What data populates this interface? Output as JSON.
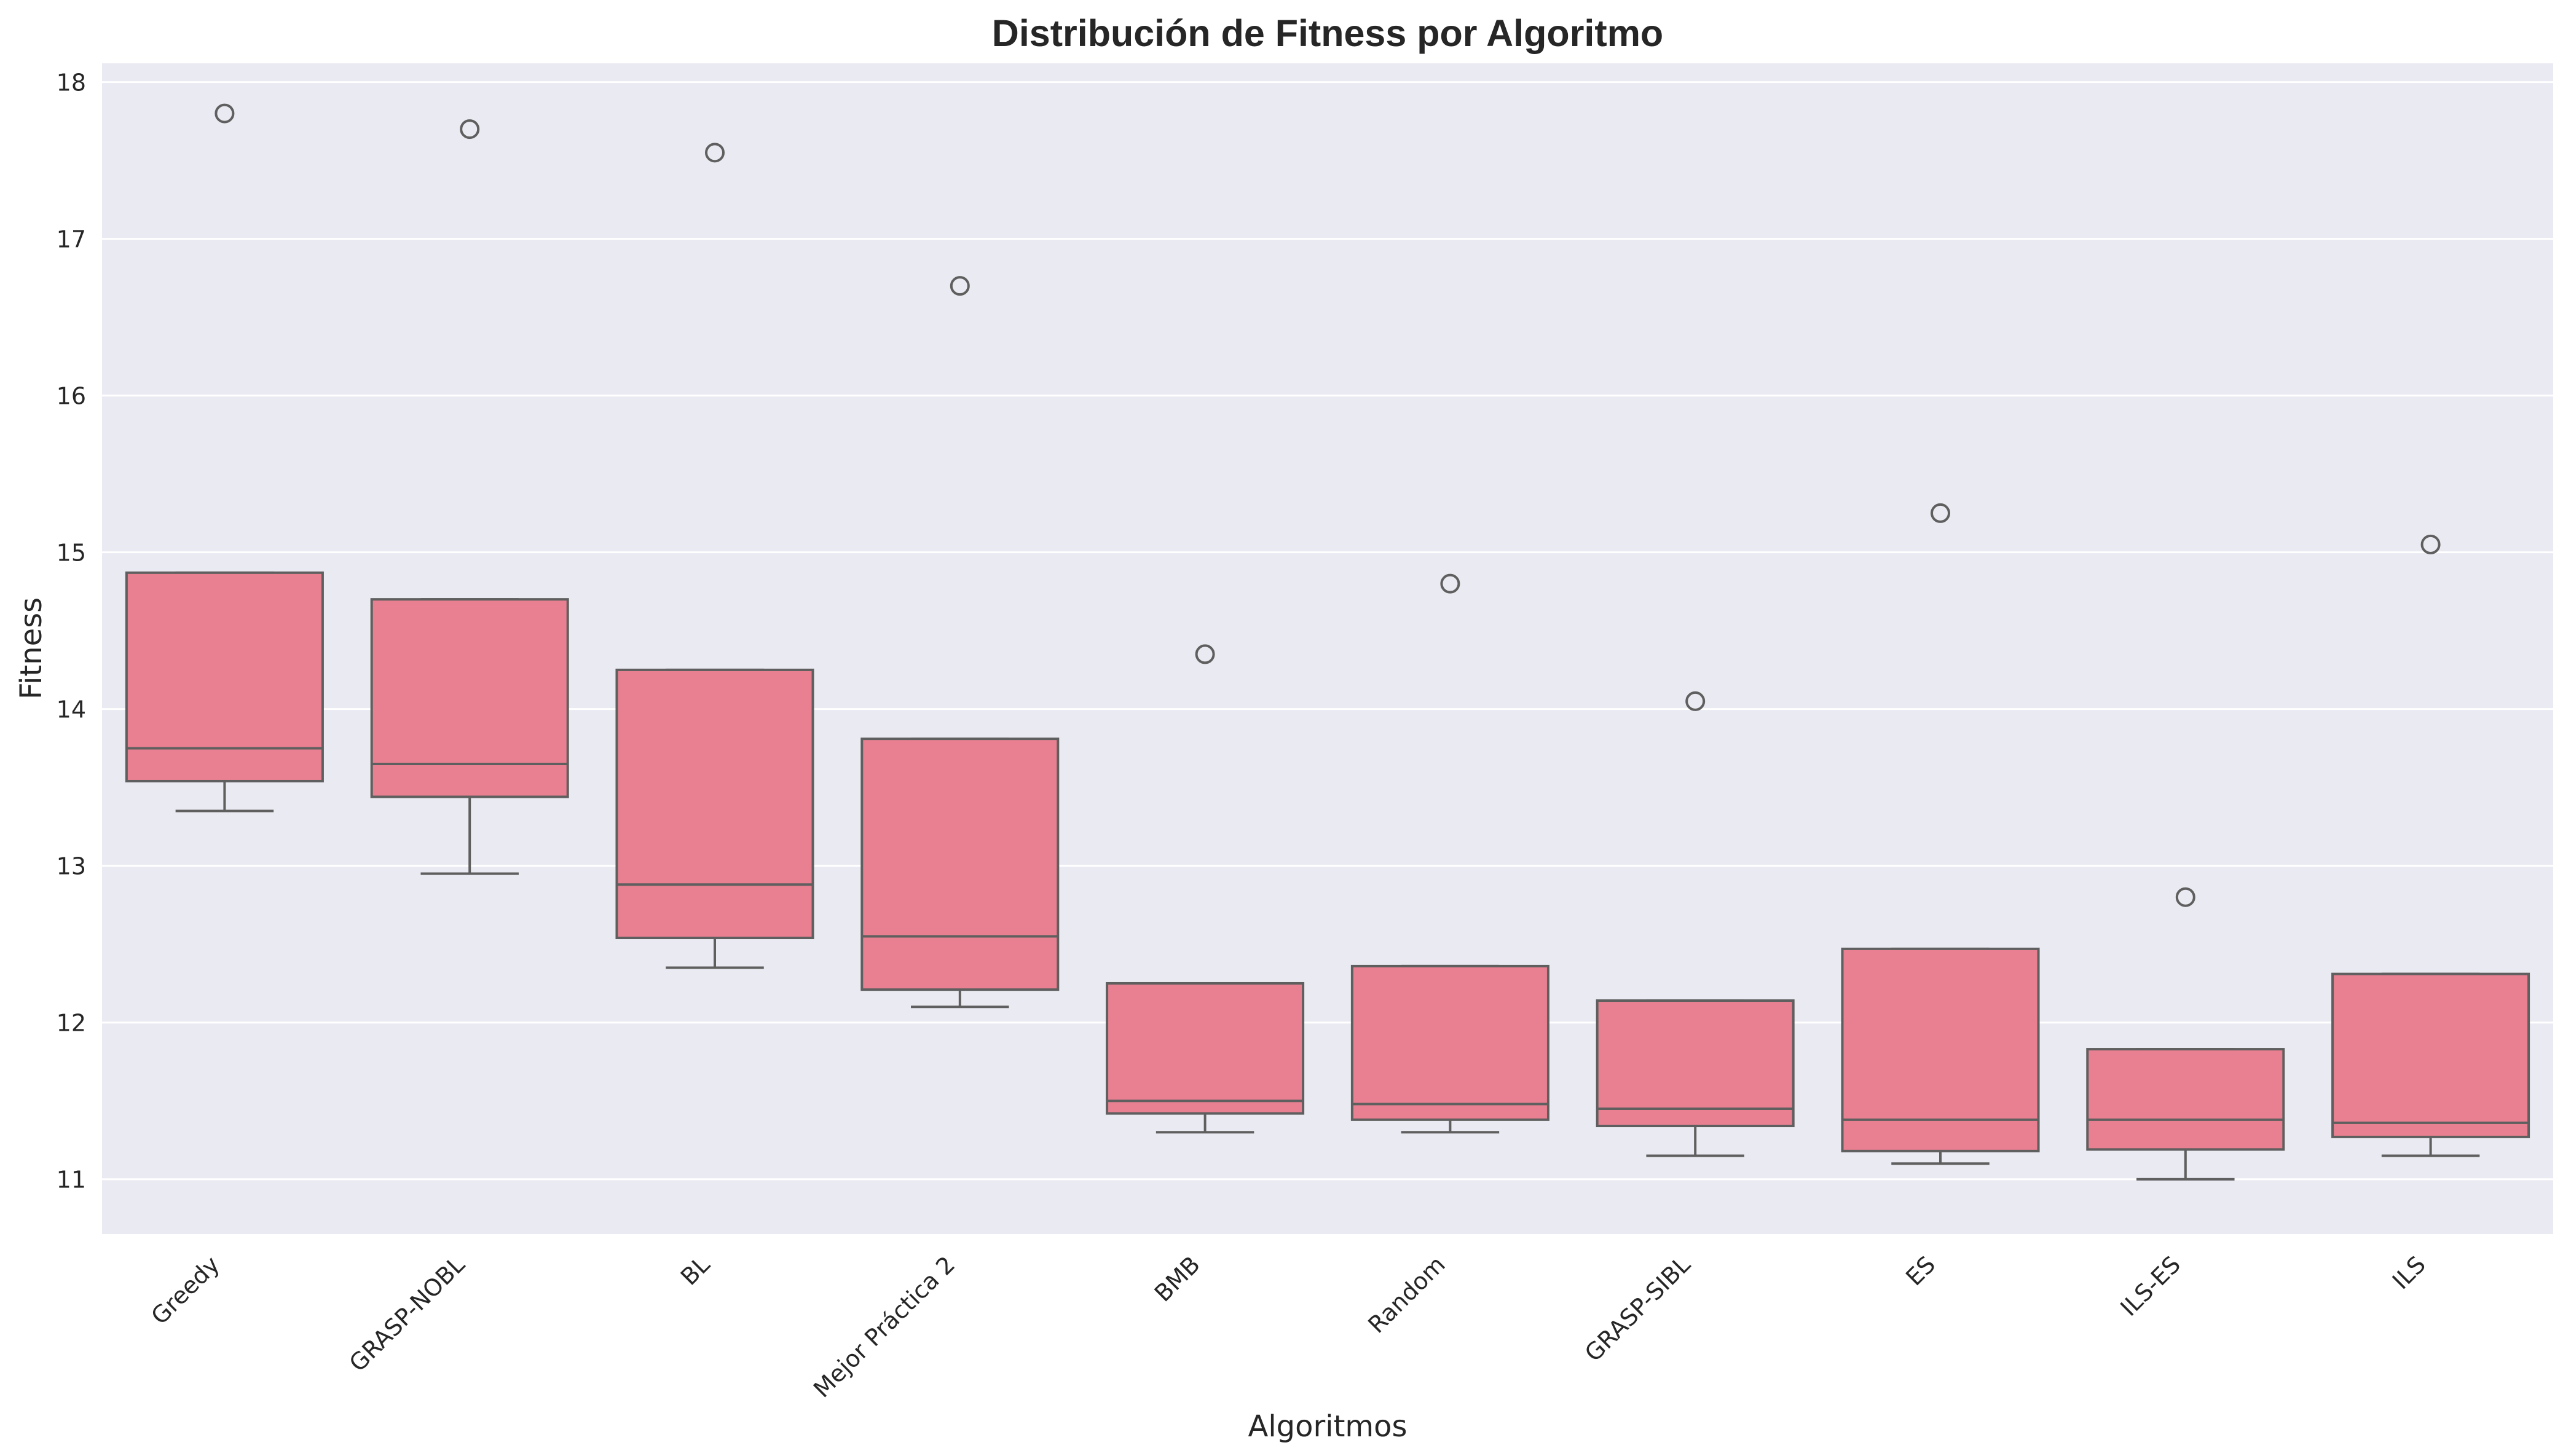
{
  "chart_data": {
    "type": "box",
    "title": "Distribución de Fitness por Algoritmo",
    "xlabel": "Algoritmos",
    "ylabel": "Fitness",
    "ylim": [
      10.65,
      18.12
    ],
    "yticks": [
      11,
      12,
      13,
      14,
      15,
      16,
      17,
      18
    ],
    "grid": true,
    "legend": "none",
    "colors": {
      "background": "#EAEAF2",
      "box_fill": "#E88091",
      "box_edge": "#5F5F5F",
      "grid": "#FFFFFF",
      "text": "#262626"
    },
    "categories": [
      "Greedy",
      "GRASP-NOBL",
      "BL",
      "Mejor Práctica 2",
      "BMB",
      "Random",
      "GRASP-SIBL",
      "ES",
      "ILS-ES",
      "ILS"
    ],
    "boxes": [
      {
        "label": "Greedy",
        "whisker_low": 13.35,
        "q1": 13.54,
        "median": 13.75,
        "q3": 14.87,
        "whisker_high": 14.87,
        "outliers": [
          17.8
        ]
      },
      {
        "label": "GRASP-NOBL",
        "whisker_low": 12.95,
        "q1": 13.44,
        "median": 13.65,
        "q3": 14.7,
        "whisker_high": 14.7,
        "outliers": [
          17.7
        ]
      },
      {
        "label": "BL",
        "whisker_low": 12.35,
        "q1": 12.54,
        "median": 12.88,
        "q3": 14.25,
        "whisker_high": 14.25,
        "outliers": [
          17.55
        ]
      },
      {
        "label": "Mejor Práctica 2",
        "whisker_low": 12.1,
        "q1": 12.21,
        "median": 12.55,
        "q3": 13.81,
        "whisker_high": 13.81,
        "outliers": [
          16.7
        ]
      },
      {
        "label": "BMB",
        "whisker_low": 11.3,
        "q1": 11.42,
        "median": 11.5,
        "q3": 12.25,
        "whisker_high": 12.25,
        "outliers": [
          14.35
        ]
      },
      {
        "label": "Random",
        "whisker_low": 11.3,
        "q1": 11.38,
        "median": 11.48,
        "q3": 12.36,
        "whisker_high": 12.36,
        "outliers": [
          14.8
        ]
      },
      {
        "label": "GRASP-SIBL",
        "whisker_low": 11.15,
        "q1": 11.34,
        "median": 11.45,
        "q3": 12.14,
        "whisker_high": 12.14,
        "outliers": [
          14.05
        ]
      },
      {
        "label": "ES",
        "whisker_low": 11.1,
        "q1": 11.18,
        "median": 11.38,
        "q3": 12.47,
        "whisker_high": 12.47,
        "outliers": [
          15.25
        ]
      },
      {
        "label": "ILS-ES",
        "whisker_low": 11.0,
        "q1": 11.19,
        "median": 11.38,
        "q3": 11.83,
        "whisker_high": 11.83,
        "outliers": [
          12.8
        ]
      },
      {
        "label": "ILS",
        "whisker_low": 11.15,
        "q1": 11.27,
        "median": 11.36,
        "q3": 12.31,
        "whisker_high": 12.31,
        "outliers": [
          15.05
        ]
      }
    ]
  }
}
